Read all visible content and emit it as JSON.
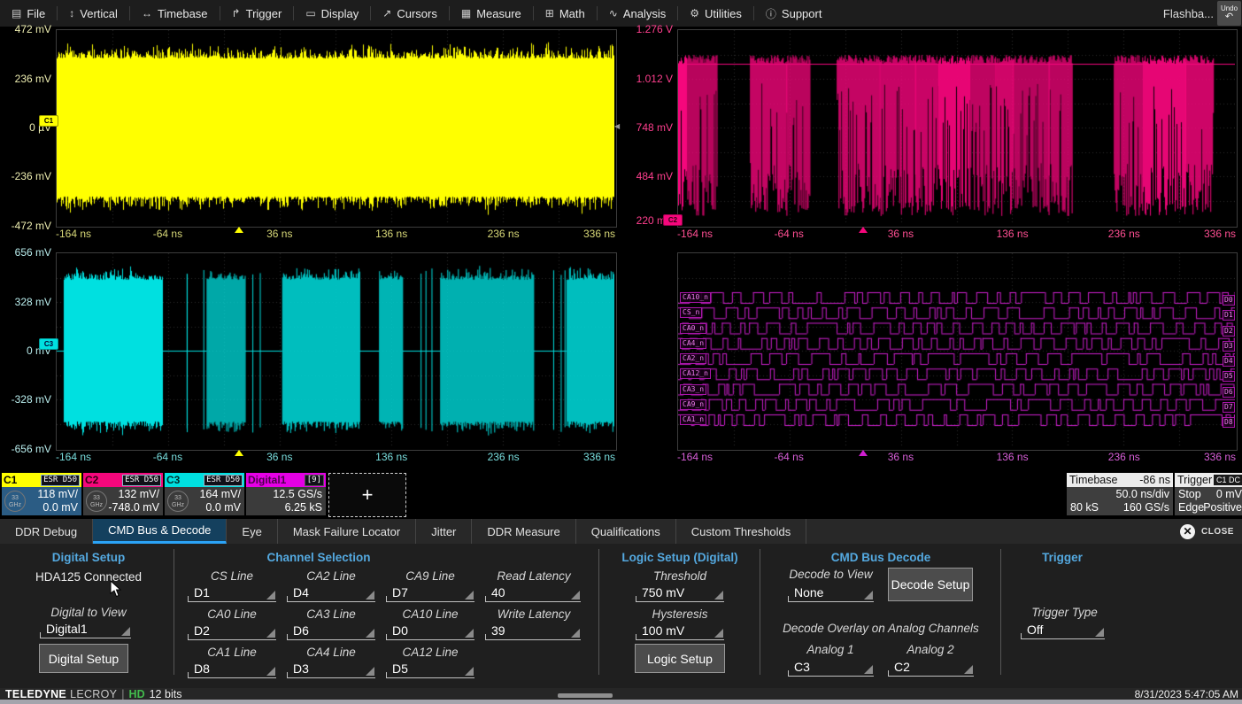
{
  "menu": {
    "items": [
      {
        "label": "File",
        "glyph": "▤"
      },
      {
        "label": "Vertical",
        "glyph": "↕"
      },
      {
        "label": "Timebase",
        "glyph": "↔"
      },
      {
        "label": "Trigger",
        "glyph": "↱"
      },
      {
        "label": "Display",
        "glyph": "▭"
      },
      {
        "label": "Cursors",
        "glyph": "↗"
      },
      {
        "label": "Measure",
        "glyph": "▦"
      },
      {
        "label": "Math",
        "glyph": "⊞"
      },
      {
        "label": "Analysis",
        "glyph": "∿"
      },
      {
        "label": "Utilities",
        "glyph": "⚙"
      },
      {
        "label": "Support",
        "glyph": "ⓘ"
      }
    ],
    "flashback_label": "Flashba...",
    "undo_label": "Undo",
    "undo_glyph": "↶"
  },
  "grids": {
    "time_labels": [
      "-164 ns",
      "-64 ns",
      "36 ns",
      "136 ns",
      "236 ns",
      "336 ns"
    ],
    "c1": {
      "y_labels": [
        "472 mV",
        "236 mV",
        "0 µV",
        "-236 mV",
        "-472 mV"
      ],
      "marker": "C1"
    },
    "c2": {
      "y_labels": [
        "1.276 V",
        "1.012 V",
        "748 mV",
        "484 mV",
        "220 mV"
      ],
      "marker": "C2"
    },
    "c3": {
      "y_labels": [
        "656 mV",
        "328 mV",
        "0 mV",
        "-328 mV",
        "-656 mV"
      ],
      "marker": "C3"
    },
    "digital": {
      "line_labels": [
        "CA10_n",
        "CS_n",
        "CA0_n",
        "CA4_n",
        "CA2_n",
        "CA12_n",
        "CA3_n",
        "CA9_n",
        "CA1_n"
      ],
      "bit_labels": [
        "D0",
        "D1",
        "D2",
        "D3",
        "D4",
        "D5",
        "D6",
        "D7",
        "D8"
      ]
    }
  },
  "descriptors": [
    {
      "id": "C1",
      "badge": "ESR D50",
      "bw_top": "33",
      "bw_bottom": "GHz",
      "line1": "118 mV/",
      "line2": "0.0 mV"
    },
    {
      "id": "C2",
      "badge": "ESR D50",
      "bw_top": "33",
      "bw_bottom": "GHz",
      "line1": "132 mV/",
      "line2": "-748.0 mV"
    },
    {
      "id": "C3",
      "badge": "ESR D50",
      "bw_top": "33",
      "bw_bottom": "GHz",
      "line1": "164 mV/",
      "line2": "0.0 mV"
    },
    {
      "id": "Digital1",
      "badge": "[9]",
      "line1": "12.5 GS/s",
      "line2": "6.25 kS"
    }
  ],
  "add_trace_label": "+",
  "timebase_box": {
    "title": "Timebase",
    "offset": "-86 ns",
    "scale": "50.0 ns/div",
    "samples": "80 kS",
    "rate": "160 GS/s"
  },
  "trigger_box": {
    "title": "Trigger",
    "badge": "C1 DC",
    "mode": "Stop",
    "level": "0 mV",
    "type": "Edge",
    "slope": "Positive"
  },
  "tabs": {
    "items": [
      "DDR Debug",
      "CMD Bus & Decode",
      "Eye",
      "Mask Failure Locator",
      "Jitter",
      "DDR Measure",
      "Qualifications",
      "Custom Thresholds"
    ],
    "selected": "CMD Bus & Decode",
    "close_label": "CLOSE"
  },
  "panel": {
    "digital_setup": {
      "title": "Digital Setup",
      "status": "HDA125 Connected",
      "view_label": "Digital to View",
      "view_value": "Digital1",
      "button_label": "Digital Setup"
    },
    "channel_selection": {
      "title": "Channel Selection",
      "fields": [
        {
          "label": "CS Line",
          "value": "D1"
        },
        {
          "label": "CA0 Line",
          "value": "D2"
        },
        {
          "label": "CA1 Line",
          "value": "D8"
        },
        {
          "label": "CA2 Line",
          "value": "D4"
        },
        {
          "label": "CA3 Line",
          "value": "D6"
        },
        {
          "label": "CA4 Line",
          "value": "D3"
        },
        {
          "label": "CA9 Line",
          "value": "D7"
        },
        {
          "label": "CA10 Line",
          "value": "D0"
        },
        {
          "label": "CA12 Line",
          "value": "D5"
        }
      ],
      "read_latency_label": "Read Latency",
      "read_latency_value": "40",
      "write_latency_label": "Write Latency",
      "write_latency_value": "39"
    },
    "logic_setup": {
      "title": "Logic Setup (Digital)",
      "threshold_label": "Threshold",
      "threshold_value": "750 mV",
      "hysteresis_label": "Hysteresis",
      "hysteresis_value": "100 mV",
      "button_label": "Logic Setup"
    },
    "cmd_bus_decode": {
      "title": "CMD Bus Decode",
      "decode_view_label": "Decode to View",
      "decode_view_value": "None",
      "decode_setup_label": "Decode Setup",
      "overlay_label": "Decode Overlay on Analog Channels",
      "analog1_label": "Analog 1",
      "analog1_value": "C3",
      "analog2_label": "Analog 2",
      "analog2_value": "C2"
    },
    "trigger": {
      "title": "Trigger",
      "type_label": "Trigger Type",
      "type_value": "Off"
    }
  },
  "statusbar": {
    "brand_bold": "TELEDYNE",
    "brand_light": "LECROY",
    "hd_badge": "HD",
    "bits": "12 bits",
    "datetime": "8/31/2023 5:47:05 AM"
  },
  "colors": {
    "c1": "#ffff00",
    "c2": "#f5077c",
    "c3": "#00e0e0",
    "digital": "#cf1fcf"
  }
}
